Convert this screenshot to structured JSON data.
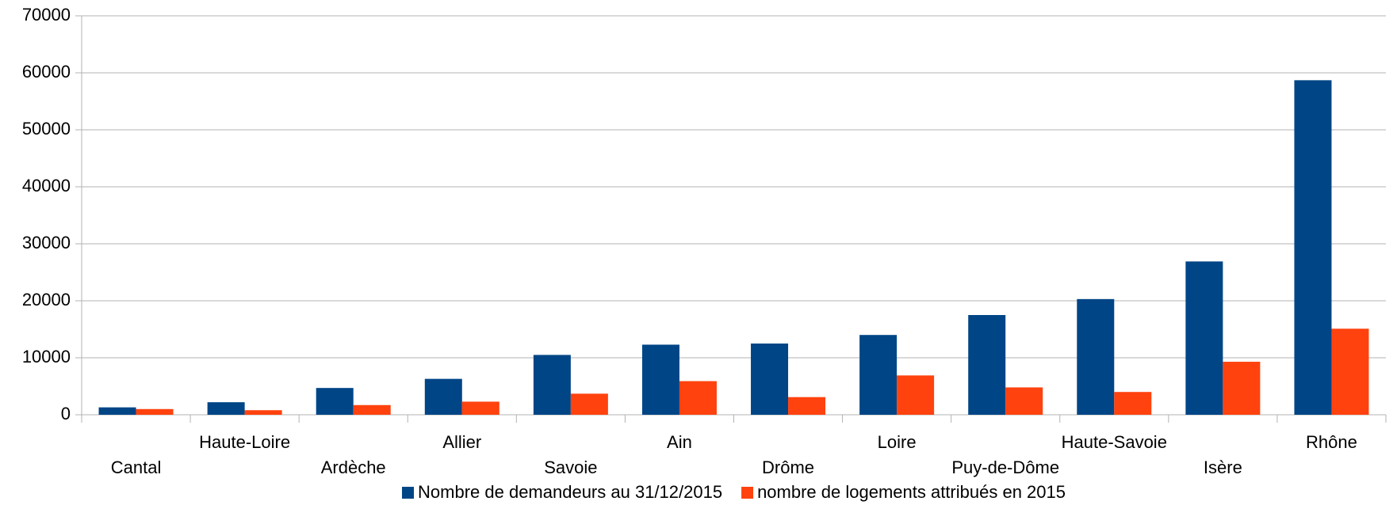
{
  "chart_data": {
    "type": "bar",
    "categories": [
      "Cantal",
      "Haute-Loire",
      "Ardèche",
      "Allier",
      "Savoie",
      "Ain",
      "Drôme",
      "Loire",
      "Puy-de-Dôme",
      "Haute-Savoie",
      "Isère",
      "Rhône"
    ],
    "series": [
      {
        "name": "Nombre de demandeurs au 31/12/2015",
        "color": "#004586",
        "values": [
          1300,
          2200,
          4700,
          6300,
          10500,
          12300,
          12500,
          14000,
          17500,
          20300,
          26900,
          58700
        ]
      },
      {
        "name": "nombre de logements attribués en 2015",
        "color": "#ff420e",
        "values": [
          1000,
          800,
          1700,
          2300,
          3700,
          5900,
          3100,
          6900,
          4800,
          4000,
          9300,
          15100
        ]
      }
    ],
    "ylim": [
      0,
      70000
    ],
    "yticks": [
      0,
      10000,
      20000,
      30000,
      40000,
      50000,
      60000,
      70000
    ],
    "grid": true,
    "legend": "bottom"
  }
}
